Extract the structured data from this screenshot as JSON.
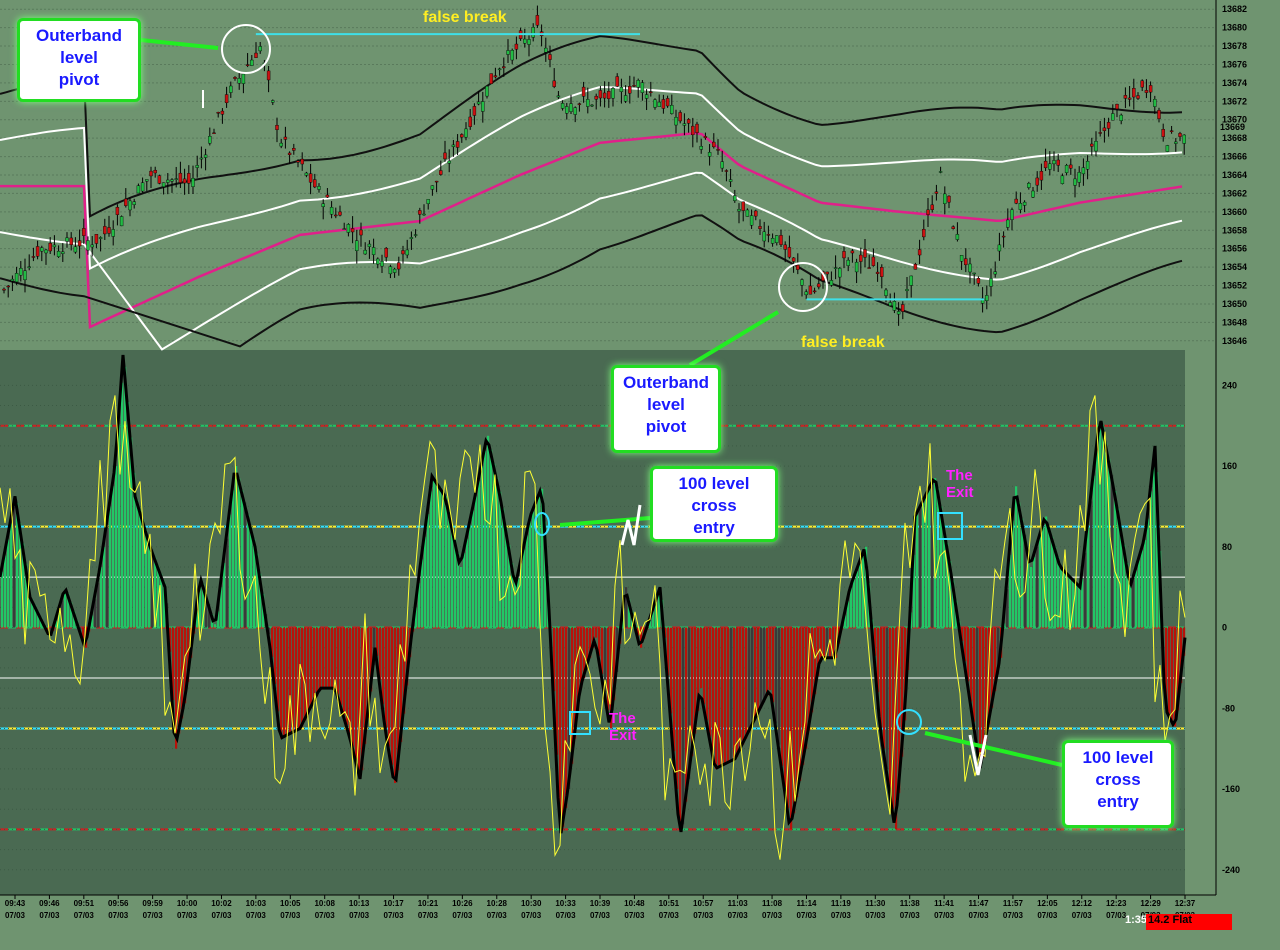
{
  "chart_data": [
    {
      "type": "candlestick",
      "panel": "price",
      "y_ticks": [
        13646,
        13648,
        13650,
        13652,
        13654,
        13656,
        13658,
        13660,
        13662,
        13664,
        13666,
        13668,
        13670,
        13672,
        13674,
        13676,
        13678,
        13680,
        13682
      ],
      "ylim": [
        13645,
        13683
      ],
      "last_price_label": "13669",
      "grid": true,
      "series": [
        {
          "name": "outer bands",
          "color": "#000000"
        },
        {
          "name": "inner bands",
          "color": "#ffffff"
        },
        {
          "name": "mid band",
          "color": "#e0208a"
        }
      ],
      "levels": [
        {
          "color": "#3ee0e8",
          "value": 13679.3,
          "x_from": "10:03",
          "x_to": "10:39"
        },
        {
          "color": "#3ee0e8",
          "value": 13650.5,
          "x_from": "11:14",
          "x_to": "11:41"
        }
      ]
    },
    {
      "type": "area",
      "panel": "oscillator",
      "y_ticks": [
        240,
        160,
        80,
        0,
        -80,
        -160,
        -240
      ],
      "ylim": [
        -265,
        275
      ],
      "horizontal_lines": [
        {
          "value": 200,
          "style": "red-green dashed"
        },
        {
          "value": 100,
          "style": "cyan-yellow dashed"
        },
        {
          "value": 50,
          "style": "white"
        },
        {
          "value": 0,
          "style": "red-green dashed"
        },
        {
          "value": -50,
          "style": "white"
        },
        {
          "value": -100,
          "style": "cyan-yellow dashed"
        },
        {
          "value": -200,
          "style": "red-green dashed"
        }
      ],
      "series": [
        {
          "color": "#000000",
          "kind": "thick line"
        },
        {
          "color": "#ffff33",
          "kind": "thin line"
        },
        {
          "colors": {
            "up": "#22c766",
            "down": "#b8120a",
            "neutral": "#3a3a3a"
          },
          "kind": "histogram"
        }
      ]
    }
  ],
  "x_labels": [
    "09:43",
    "09:46",
    "09:51",
    "09:56",
    "09:59",
    "10:00",
    "10:02",
    "10:03",
    "10:05",
    "10:08",
    "10:13",
    "10:17",
    "10:21",
    "10:26",
    "10:28",
    "10:30",
    "10:33",
    "10:39",
    "10:48",
    "10:51",
    "10:57",
    "11:03",
    "11:08",
    "11:14",
    "11:19",
    "11:30",
    "11:38",
    "11:41",
    "11:47",
    "11:57",
    "12:05",
    "12:12",
    "12:23",
    "12:29",
    "12:37"
  ],
  "x_date": "07/03",
  "annotations": {
    "outerband_top": "Outerband\nlevel\npivot",
    "outerband_bottom": "Outerband\nlevel\npivot",
    "false_break_top": "false break",
    "false_break_bottom": "false break",
    "cross_entry_top": "100 level\ncross\nentry",
    "cross_entry_bottom": "100 level\ncross\nentry",
    "exit_left": "The\nExit",
    "exit_right": "The\nExit"
  },
  "status_bar": {
    "time": "1:35",
    "pnl": "14.2",
    "position": "Flat"
  },
  "colors": {
    "bg_top": "#6f9470",
    "bg_bottom": "#4a6a52",
    "annotation_text": "#1a1aff",
    "false_break": "#ffee22",
    "exit": "#ff22ff",
    "pnl_bg": "#ff0000"
  }
}
